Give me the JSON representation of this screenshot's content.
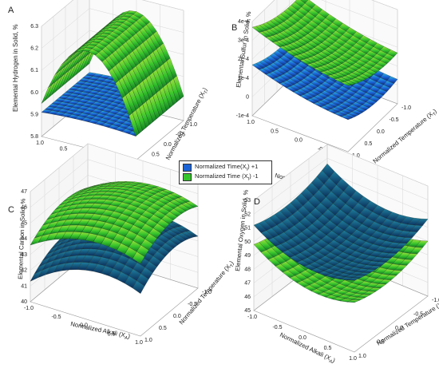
{
  "chart_data": [
    {
      "panel": "A",
      "type": "surface",
      "zlabel": "Elemental Hydrogen in Solid, %",
      "xlabel": "Normalized Alkali (X",
      "xlabel_sub": "A",
      "xlabel_end": ")",
      "ylabel": "Normalized Temperature (X",
      "ylabel_sub": "T",
      "ylabel_end": ")",
      "x_ticks": [
        "1.0",
        "0.5",
        "0.0",
        "-0.5",
        "-1.0"
      ],
      "y_ticks": [
        "1.0",
        "0.5",
        "0.0",
        "-0.5",
        "-1.0"
      ],
      "z_ticks": [
        "5.8",
        "5.9",
        "6.0",
        "6.1",
        "6.2",
        "6.3"
      ],
      "zlim": [
        5.8,
        6.3
      ],
      "series": [
        {
          "name": "Normalized Time(X",
          "sub": "t",
          "end": ") +1",
          "color": "#1a63d6",
          "z00": 5.92,
          "a": 0.0,
          "b": 0.0,
          "c": -0.01,
          "d": 0.0
        },
        {
          "name": "Normalized Time (X",
          "sub": "t",
          "end": ") -1",
          "color": "#36c42c",
          "z00": 6.24,
          "a": -0.02,
          "b": 0.0,
          "c": -0.31,
          "d": 0.0
        }
      ]
    },
    {
      "panel": "B",
      "type": "surface",
      "zlabel": "Elemental Sulfur in Solid, %",
      "xlabel": "Normalized Alkali (X",
      "xlabel_sub": "A",
      "xlabel_end": ")",
      "ylabel": "Normalized Temperature (X",
      "ylabel_sub": "T",
      "ylabel_end": ")",
      "x_ticks": [
        "1.0",
        "0.5",
        "0.0",
        "-0.5",
        "-1.0"
      ],
      "y_ticks": [
        "1.0",
        "0.5",
        "0.0",
        "-0.5",
        "-1.0"
      ],
      "z_ticks": [
        "-1e-4",
        "0",
        "1e-4",
        "2e-4",
        "3e-4",
        "4e-4"
      ],
      "zlim": [
        -0.0001,
        0.0004
      ],
      "series": [
        {
          "name": "Normalized Time(X",
          "sub": "t",
          "end": ") +1",
          "color": "#1a63d6",
          "z00": 5e-05,
          "a": -5e-05,
          "b": -2e-05,
          "c": 2e-05,
          "d": 3e-05
        },
        {
          "name": "Normalized Time (X",
          "sub": "t",
          "end": ") -1",
          "color": "#36c42c",
          "z00": 0.00022,
          "a": -6e-05,
          "b": -4e-05,
          "c": 2e-05,
          "d": 3e-05
        }
      ]
    },
    {
      "panel": "C",
      "type": "surface",
      "zlabel": "Elemental Carbon in Solid, %",
      "xlabel": "Normalized Alkali (X",
      "xlabel_sub": "A",
      "xlabel_end": ")",
      "ylabel": "Normalized Temperature (X",
      "ylabel_sub": "T",
      "ylabel_end": ")",
      "x_ticks": [
        "-1.0",
        "-0.5",
        "0.0",
        "0.5",
        "1.0"
      ],
      "y_ticks": [
        "1.0",
        "0.5",
        "0.0",
        "-0.5",
        "-1.0"
      ],
      "z_ticks": [
        "40",
        "41",
        "42",
        "43",
        "44",
        "45",
        "46",
        "47"
      ],
      "zlim": [
        40,
        47
      ],
      "series": [
        {
          "name": "Normalized Time(X",
          "sub": "t",
          "end": ") +1",
          "color": "#1a63d6",
          "z00": 44.2,
          "a": 0.7,
          "b": 0.3,
          "c": -1.1,
          "d": -0.8
        },
        {
          "name": "Normalized Time (X",
          "sub": "t",
          "end": ") -1",
          "color": "#36c42c",
          "z00": 46.0,
          "a": 0.5,
          "b": 0.3,
          "c": -0.9,
          "d": -0.7
        }
      ]
    },
    {
      "panel": "D",
      "type": "surface",
      "zlabel": "Elemental Oxygen in Solid, %",
      "xlabel": "Normalized Alkali (X",
      "xlabel_sub": "A",
      "xlabel_end": ")",
      "ylabel": "Normalized Temperature (X",
      "ylabel_sub": "T",
      "ylabel_end": ")",
      "x_ticks": [
        "-1.0",
        "-0.5",
        "0.0",
        "0.5",
        "1.0"
      ],
      "y_ticks": [
        "1.0",
        "0.5",
        "0.0",
        "-0.5",
        "-1.0"
      ],
      "z_ticks": [
        "45",
        "46",
        "47",
        "48",
        "49",
        "50",
        "51",
        "52",
        "53"
      ],
      "zlim": [
        45,
        53
      ],
      "series": [
        {
          "name": "Normalized Time(X",
          "sub": "t",
          "end": ") +1",
          "color": "#1a63d6",
          "z00": 49.3,
          "a": -0.5,
          "b": 0.2,
          "c": 1.0,
          "d": 0.6
        },
        {
          "name": "Normalized Time (X",
          "sub": "t",
          "end": ") -1",
          "color": "#36c42c",
          "z00": 47.8,
          "a": -0.6,
          "b": 0.2,
          "c": 1.0,
          "d": 0.6
        }
      ]
    }
  ],
  "legend": {
    "items": [
      {
        "text": "Normalized Time(X",
        "sub": "t",
        "end": ") +1",
        "color": "#1a63d6"
      },
      {
        "text": "Normalized Time (X",
        "sub": "t",
        "end": ") -1",
        "color": "#36c42c"
      }
    ]
  }
}
